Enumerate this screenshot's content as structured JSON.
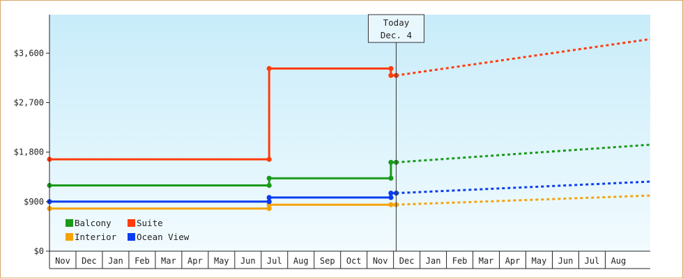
{
  "chart_data": {
    "type": "line",
    "title": "",
    "xlabel": "",
    "ylabel": "",
    "ylim": [
      0,
      4300
    ],
    "yticks": [
      0,
      900,
      1800,
      2700,
      3600
    ],
    "ytick_labels": [
      "$0",
      "$900",
      "$1,800",
      "$2,700",
      "$3,600"
    ],
    "month_labels": [
      "Nov",
      "Dec",
      "Jan",
      "Feb",
      "Mar",
      "Apr",
      "May",
      "Jun",
      "Jul",
      "Aug",
      "Sep",
      "Oct",
      "Nov",
      "Dec",
      "Jan",
      "Feb",
      "Mar",
      "Apr",
      "May",
      "Jun",
      "Jul",
      "Aug"
    ],
    "x_unit": "months from first Nov",
    "xlim": [
      0,
      22.7
    ],
    "today": {
      "x": 13.1,
      "line1": "Today",
      "line2": "Dec. 4"
    },
    "grid": false,
    "legend_position": "bottom-left",
    "series": [
      {
        "name": "Balcony",
        "color": "#1a9a1a",
        "points": [
          [
            0,
            1195
          ],
          [
            8.3,
            1195
          ],
          [
            8.3,
            1325
          ],
          [
            12.9,
            1325
          ],
          [
            12.9,
            1615
          ],
          [
            13.1,
            1615
          ]
        ],
        "markers": [
          [
            0,
            1195
          ],
          [
            8.3,
            1195
          ],
          [
            8.3,
            1325
          ],
          [
            12.9,
            1325
          ],
          [
            12.9,
            1615
          ],
          [
            13.1,
            1615
          ]
        ],
        "forecast": [
          [
            13.1,
            1615
          ],
          [
            22.7,
            1935
          ]
        ]
      },
      {
        "name": "Suite",
        "color": "#ff3c0a",
        "points": [
          [
            0,
            1670
          ],
          [
            8.3,
            1670
          ],
          [
            8.3,
            3320
          ],
          [
            12.9,
            3320
          ],
          [
            12.9,
            3195
          ],
          [
            13.1,
            3195
          ]
        ],
        "markers": [
          [
            0,
            1670
          ],
          [
            8.3,
            1670
          ],
          [
            8.3,
            3320
          ],
          [
            12.9,
            3320
          ],
          [
            12.9,
            3195
          ],
          [
            13.1,
            3195
          ]
        ],
        "forecast": [
          [
            13.1,
            3195
          ],
          [
            22.7,
            3855
          ]
        ]
      },
      {
        "name": "Interior",
        "color": "#f5a20a",
        "points": [
          [
            0,
            775
          ],
          [
            8.3,
            775
          ],
          [
            8.3,
            845
          ],
          [
            12.9,
            845
          ],
          [
            13.1,
            845
          ]
        ],
        "markers": [
          [
            0,
            775
          ],
          [
            8.3,
            775
          ],
          [
            8.3,
            845
          ],
          [
            12.9,
            845
          ],
          [
            13.1,
            845
          ]
        ],
        "forecast": [
          [
            13.1,
            845
          ],
          [
            22.7,
            1010
          ]
        ]
      },
      {
        "name": "Ocean View",
        "color": "#0a3cf0",
        "points": [
          [
            0,
            900
          ],
          [
            8.3,
            900
          ],
          [
            8.3,
            975
          ],
          [
            12.9,
            975
          ],
          [
            12.9,
            1055
          ],
          [
            13.1,
            1055
          ]
        ],
        "markers": [
          [
            0,
            900
          ],
          [
            8.3,
            900
          ],
          [
            8.3,
            975
          ],
          [
            12.9,
            975
          ],
          [
            12.9,
            1055
          ],
          [
            13.1,
            1055
          ]
        ],
        "forecast": [
          [
            13.1,
            1055
          ],
          [
            22.7,
            1265
          ]
        ]
      }
    ],
    "legend_order": [
      "Balcony",
      "Suite",
      "Interior",
      "Ocean View"
    ]
  },
  "colors": {
    "frame_border": "#d9a56a",
    "plot_bg_top": "#c8ecfa",
    "plot_bg_bottom": "#f2fbfe",
    "axis": "#222222"
  }
}
